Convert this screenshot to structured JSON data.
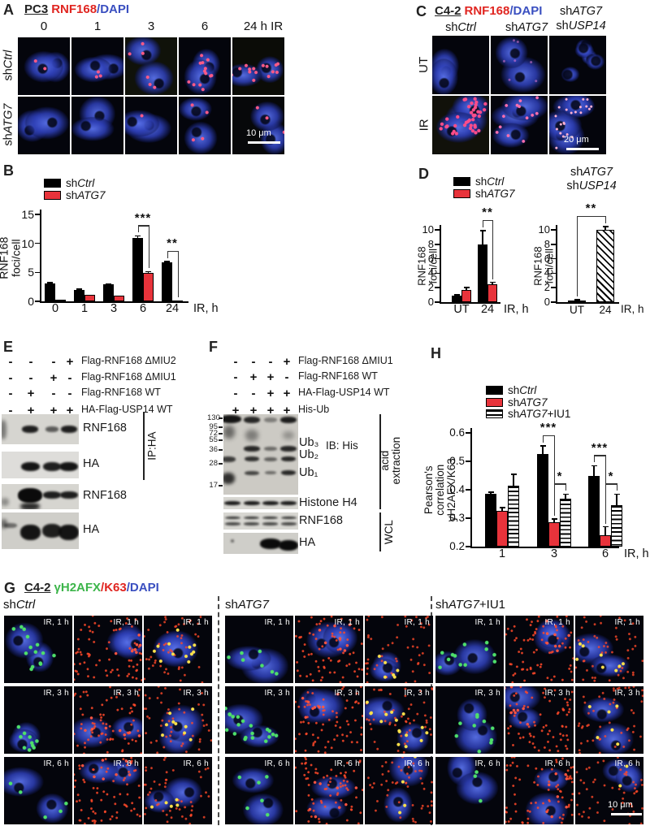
{
  "pa": {
    "label": "A",
    "cell_line": "PC3",
    "stain_red": "RNF168",
    "stain_blue": "/DAPI",
    "timepoints": [
      "0",
      "1",
      "3",
      "6",
      "24 h IR"
    ],
    "row_labels": [
      "sh*Ctrl*",
      "sh*ATG7*"
    ],
    "scale_bar": "10 μm"
  },
  "pc": {
    "label": "C",
    "cell_line": "C4-2",
    "stain_red": "RNF168",
    "stain_blue": "/DAPI",
    "col_headers": [
      "sh*Ctrl*",
      "sh*ATG7*"
    ],
    "col3_lines": [
      "sh*ATG7*",
      "sh*USP14*"
    ],
    "row_labels": [
      "UT",
      "IR"
    ],
    "scale_bar": "20 μm"
  },
  "pe": {
    "label": "E",
    "conditions": [
      {
        "signs": [
          "-",
          "-",
          "-",
          "+"
        ],
        "label": "Flag-RNF168 ΔMIU2"
      },
      {
        "signs": [
          "-",
          "-",
          "+",
          "-"
        ],
        "label": "Flag-RNF168 ΔMIU1"
      },
      {
        "signs": [
          "-",
          "+",
          "-",
          "-"
        ],
        "label": "Flag-RNF168 WT"
      },
      {
        "signs": [
          "-",
          "+",
          "+",
          "+"
        ],
        "label": "HA-Flag-USP14 WT"
      }
    ],
    "blot_labels": [
      "RNF168",
      "HA",
      "RNF168",
      "HA"
    ],
    "ip_label": "IP:HA"
  },
  "pf": {
    "label": "F",
    "conditions": [
      {
        "signs": [
          "-",
          "-",
          "-",
          "+"
        ],
        "label": "Flag-RNF168 ΔMIU1"
      },
      {
        "signs": [
          "-",
          "+",
          "+",
          "-"
        ],
        "label": "Flag-RNF168 WT"
      },
      {
        "signs": [
          "-",
          "-",
          "+",
          "+"
        ],
        "label": "HA-Flag-USP14 WT"
      },
      {
        "signs": [
          "+",
          "+",
          "+",
          "+"
        ],
        "label": "His-Ub"
      }
    ],
    "mw_markers": [
      "130",
      "95",
      "72",
      "55",
      "36",
      "28",
      "17"
    ],
    "band_labels": [
      "Ub₃",
      "Ub₂",
      "Ub₁"
    ],
    "ib_label": "IB: His",
    "blot_labels": [
      "Histone  H4",
      "RNF168",
      "HA"
    ],
    "group_acid": "acid\nextraction",
    "group_wcl": "WCL"
  },
  "pg": {
    "label": "G",
    "cell_line": "C4-2",
    "stain_green": "γH2AFX",
    "stain_red": "/K63",
    "stain_blue": "/DAPI",
    "groups": [
      "sh*Ctrl*",
      "sh*ATG7*",
      "sh*ATG7*+IU1"
    ],
    "timepoint_labels": [
      "IR, 1 h",
      "IR, 3 h",
      "IR, 6 h"
    ],
    "scale_bar": "10 μm"
  },
  "chart_data": [
    {
      "id": "B",
      "panel_label": "B",
      "type": "bar",
      "categories": [
        "0",
        "1",
        "3",
        "6",
        "24"
      ],
      "series": [
        {
          "name": "sh*Ctrl*",
          "color": "#000000",
          "pattern": "solid",
          "values": [
            3.1,
            2.0,
            2.9,
            11.0,
            6.7
          ],
          "errors": [
            0.1,
            0.12,
            0.12,
            0.3,
            0.2
          ]
        },
        {
          "name": "sh*ATG7*",
          "color": "#e8333b",
          "pattern": "solid",
          "values": [
            0.35,
            1.15,
            1.05,
            4.95,
            0.15
          ],
          "errors": [
            0,
            0,
            0,
            0.2,
            0
          ]
        }
      ],
      "ylabel": "RNF168 foci/cell",
      "yticks": [
        0,
        5,
        10,
        15
      ],
      "ylim": [
        0,
        15
      ],
      "x_suffix": "IR, h",
      "legend": true,
      "annotations": [
        {
          "cat": "6",
          "bars": [
            0,
            1
          ],
          "label": "***"
        },
        {
          "cat": "24",
          "bars": [
            0,
            1
          ],
          "label": "**"
        }
      ]
    },
    {
      "id": "D1",
      "panel_label": "D",
      "type": "bar",
      "categories": [
        "UT",
        "24"
      ],
      "series": [
        {
          "name": "sh*Ctrl*",
          "color": "#000000",
          "pattern": "solid",
          "values": [
            0.9,
            8.0
          ],
          "errors": [
            0.12,
            1.9
          ]
        },
        {
          "name": "sh*ATG7*",
          "color": "#e8333b",
          "pattern": "solid",
          "values": [
            1.7,
            2.5
          ],
          "errors": [
            0.3,
            0.25
          ]
        }
      ],
      "ylabel": "RNF168 foci/cell",
      "yticks": [
        0,
        2,
        4,
        6,
        8,
        10
      ],
      "ylim": [
        0,
        10
      ],
      "x_suffix": "IR, h",
      "legend": true,
      "annotations": [
        {
          "cat": "24",
          "bars": [
            0,
            1
          ],
          "label": "**"
        }
      ]
    },
    {
      "id": "D2",
      "type": "bar",
      "title_lines": [
        "sh*ATG7*",
        "sh*USP14*"
      ],
      "categories": [
        "UT",
        "24"
      ],
      "series": [
        {
          "name": "sh*ATG7* sh*USP14*",
          "color": "#ffffff",
          "pattern": "diagonal",
          "values": [
            0.2,
            10.0
          ],
          "errors": [
            0.12,
            0.45
          ]
        }
      ],
      "ylabel": "RNF168 foci/cell",
      "yticks": [
        0,
        2,
        4,
        6,
        8,
        10
      ],
      "ylim": [
        0,
        10
      ],
      "x_suffix": "IR, h",
      "legend": false,
      "annotations": [
        {
          "cats": [
            "UT",
            "24"
          ],
          "label": "**"
        }
      ]
    },
    {
      "id": "H",
      "panel_label": "H",
      "type": "bar",
      "categories": [
        "1",
        "3",
        "6"
      ],
      "series": [
        {
          "name": "sh*Ctrl*",
          "color": "#000000",
          "pattern": "solid",
          "values": [
            0.385,
            0.525,
            0.45
          ],
          "errors": [
            0.006,
            0.03,
            0.035
          ]
        },
        {
          "name": "sh*ATG7*",
          "color": "#e8333b",
          "pattern": "solid",
          "values": [
            0.325,
            0.285,
            0.24
          ],
          "errors": [
            0.012,
            0.012,
            0.03
          ]
        },
        {
          "name": "sh*ATG7*+IU1",
          "color": "#ffffff",
          "pattern": "hlines",
          "values": [
            0.415,
            0.37,
            0.345
          ],
          "errors": [
            0.04,
            0.015,
            0.04
          ]
        }
      ],
      "ylabel_lines": [
        "Pearson's correlation",
        "γH2AFX/K63"
      ],
      "yticks": [
        0.2,
        0.3,
        0.4,
        0.5,
        0.6
      ],
      "ylim": [
        0.2,
        0.6
      ],
      "x_suffix": "IR, h",
      "legend": true,
      "annotations": [
        {
          "cat": "3",
          "bars": [
            0,
            1
          ],
          "label": "***"
        },
        {
          "cat": "3",
          "bars": [
            1,
            2
          ],
          "label": "*"
        },
        {
          "cat": "6",
          "bars": [
            0,
            1
          ],
          "label": "***"
        },
        {
          "cat": "6",
          "bars": [
            1,
            2
          ],
          "label": "*"
        }
      ]
    }
  ]
}
